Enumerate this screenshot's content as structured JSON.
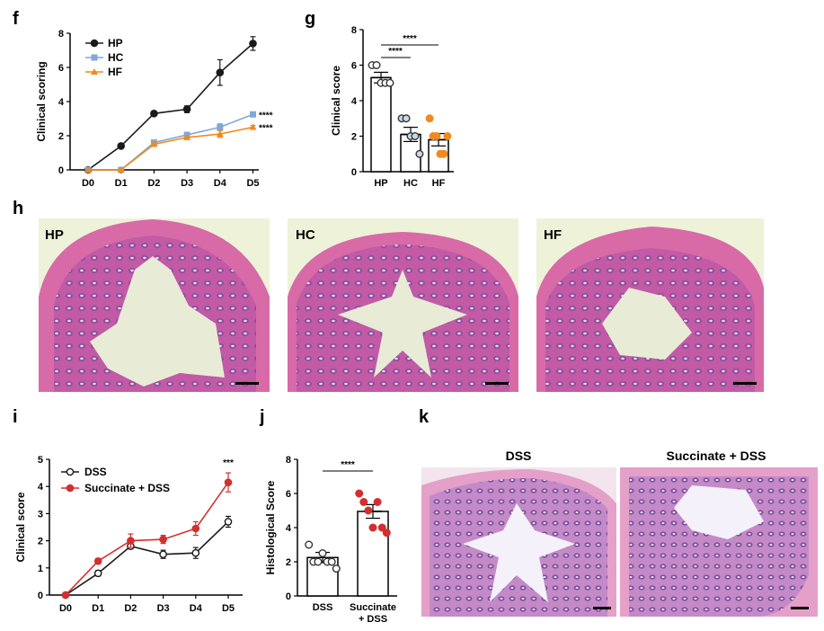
{
  "panels": {
    "f": "f",
    "g": "g",
    "h": "h",
    "i": "i",
    "j": "j",
    "k": "k"
  },
  "colors": {
    "HP": "#1a1a1a",
    "HC": "#7fa7d9",
    "HF": "#f08a1c",
    "DSS": "#1a1a1a",
    "Succinate": "#d32f2f",
    "g_HC_fill": "#c9d8e8",
    "g_HF_fill": "#f08a1c",
    "j_succ_fill": "#d32f2f",
    "tissue_pink": "#d86aa8",
    "tissue_purple": "#9b4aa0",
    "lumen": "#eef2d8",
    "k_pink": "#e4a0c8",
    "k_purple": "#8a5aa8"
  },
  "chart_data": [
    {
      "id": "f",
      "type": "line",
      "ylabel": "Clinical scoring",
      "xlabel": "",
      "categories": [
        "D0",
        "D1",
        "D2",
        "D3",
        "D4",
        "D5"
      ],
      "ylim": [
        0,
        8
      ],
      "yticks": [
        0,
        2,
        4,
        6,
        8
      ],
      "legend": "top-left",
      "series": [
        {
          "name": "HP",
          "values": [
            0,
            1.4,
            3.3,
            3.55,
            5.7,
            7.4
          ],
          "err": [
            0,
            0.1,
            0.1,
            0.2,
            0.75,
            0.4
          ]
        },
        {
          "name": "HC",
          "values": [
            0,
            0,
            1.6,
            2.05,
            2.5,
            3.25
          ],
          "err": [
            0,
            0,
            0.1,
            0.1,
            0.2,
            0.1
          ]
        },
        {
          "name": "HF",
          "values": [
            0,
            0,
            1.5,
            1.9,
            2.1,
            2.5
          ],
          "err": [
            0,
            0,
            0.1,
            0.1,
            0.2,
            0.1
          ]
        }
      ],
      "annotations": [
        "****",
        "****"
      ]
    },
    {
      "id": "g",
      "type": "bar",
      "ylabel": "Clinical score",
      "categories": [
        "HP",
        "HC",
        "HF"
      ],
      "ylim": [
        0,
        8
      ],
      "yticks": [
        0,
        2,
        4,
        6,
        8
      ],
      "values": [
        5.3,
        2.1,
        1.8
      ],
      "err": [
        0.3,
        0.4,
        0.35
      ],
      "points": [
        [
          6.0,
          6.0,
          5.0,
          5.0,
          5.0
        ],
        [
          3.0,
          3.0,
          2.0,
          2.0,
          1.0
        ],
        [
          3.0,
          2.0,
          2.0,
          1.0,
          1.0,
          2.0
        ]
      ],
      "annotations": [
        "****",
        "****"
      ]
    },
    {
      "id": "i",
      "type": "line",
      "ylabel": "Clinical score",
      "categories": [
        "D0",
        "D1",
        "D2",
        "D3",
        "D4",
        "D5"
      ],
      "ylim": [
        0,
        5
      ],
      "yticks": [
        0,
        1,
        2,
        3,
        4,
        5
      ],
      "legend": "top-left",
      "series": [
        {
          "name": "DSS",
          "values": [
            0,
            0.8,
            1.8,
            1.5,
            1.55,
            2.7
          ],
          "err": [
            0,
            0.1,
            0.1,
            0.15,
            0.2,
            0.2
          ]
        },
        {
          "name": "Succinate + DSS",
          "values": [
            0,
            1.25,
            2.0,
            2.05,
            2.45,
            4.15
          ],
          "err": [
            0,
            0.1,
            0.25,
            0.15,
            0.25,
            0.35
          ]
        }
      ],
      "annotations": [
        "***"
      ]
    },
    {
      "id": "j",
      "type": "bar",
      "ylabel": "Histological Score",
      "categories": [
        "DSS",
        "Succinate\n+ DSS"
      ],
      "category_lines": [
        [
          "DSS"
        ],
        [
          "Succinate",
          "+ DSS"
        ]
      ],
      "ylim": [
        0,
        8
      ],
      "yticks": [
        0,
        2,
        4,
        6,
        8
      ],
      "values": [
        2.25,
        4.95
      ],
      "err": [
        0.3,
        0.4
      ],
      "points": [
        [
          3.0,
          2.0,
          2.0,
          2.5,
          2.0,
          2.0,
          1.6
        ],
        [
          6.0,
          5.5,
          5.0,
          4.0,
          5.5,
          4.0,
          3.7
        ]
      ],
      "annotations": [
        "****"
      ]
    }
  ],
  "histology_h": [
    "HP",
    "HC",
    "HF"
  ],
  "histology_k": [
    "DSS",
    "Succinate + DSS"
  ]
}
